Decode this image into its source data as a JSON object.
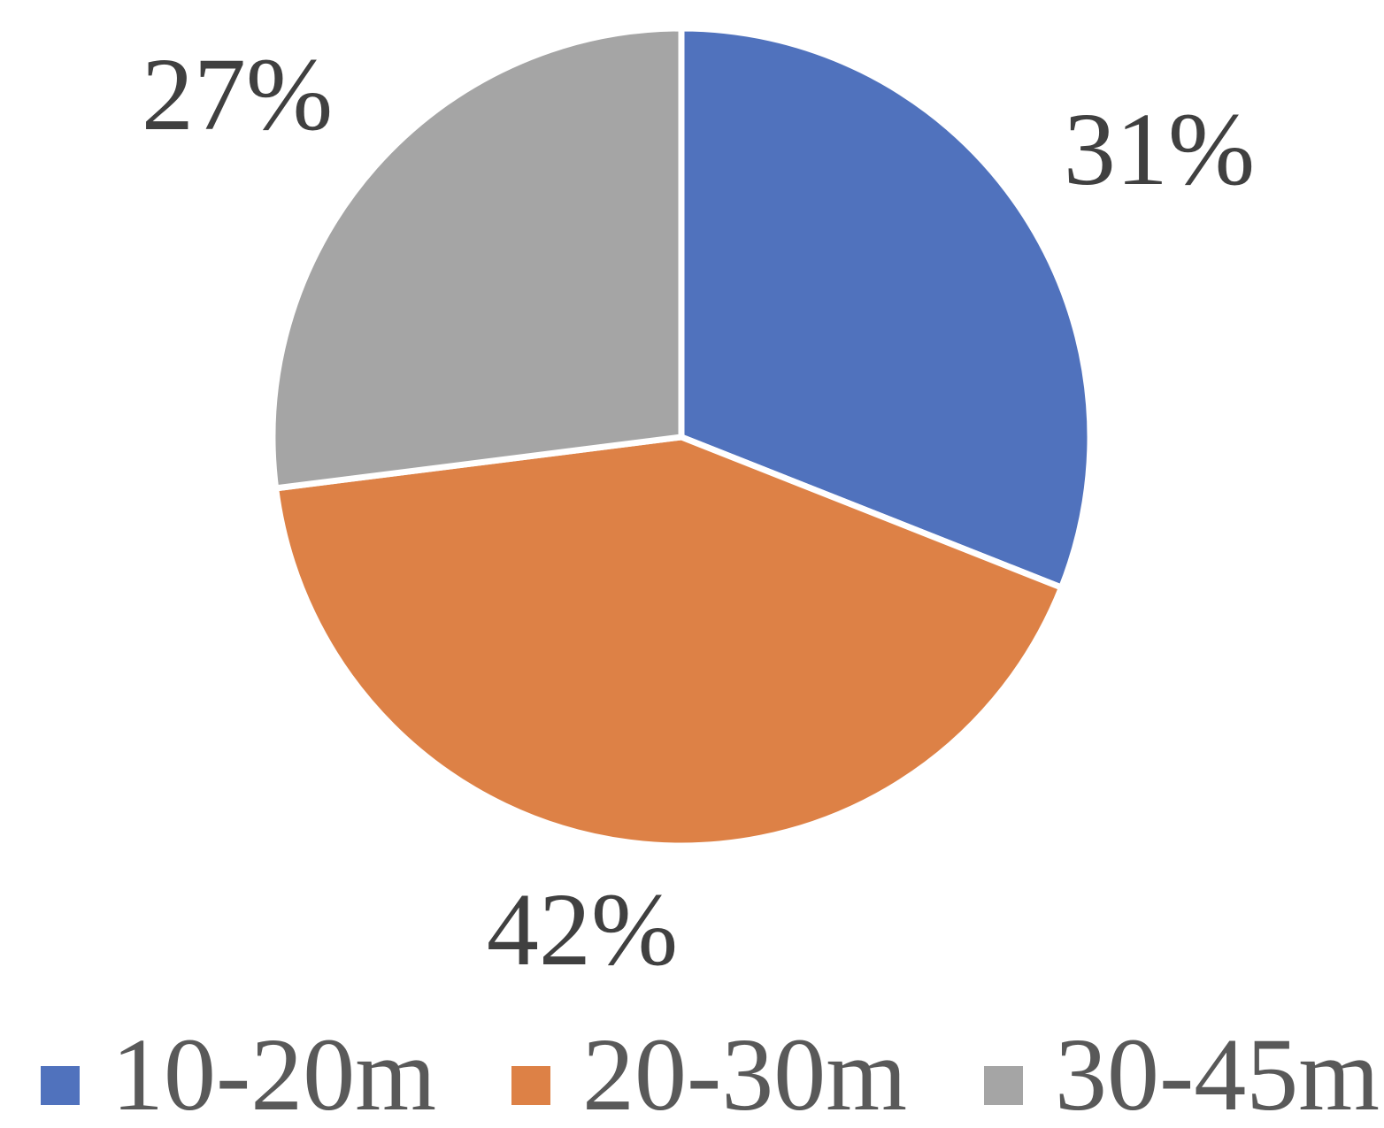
{
  "chart_data": {
    "type": "pie",
    "categories": [
      "10-20m",
      "20-30m",
      "30-45m"
    ],
    "values": [
      31,
      42,
      27
    ],
    "value_labels": [
      "31%",
      "42%",
      "27%"
    ],
    "colors": [
      "#5072BD",
      "#DD8146",
      "#A5A5A5"
    ],
    "start_angle_deg": 0,
    "direction": "clockwise",
    "legend": {
      "position": "bottom",
      "items": [
        "10-20m",
        "20-30m",
        "30-45m"
      ]
    }
  }
}
